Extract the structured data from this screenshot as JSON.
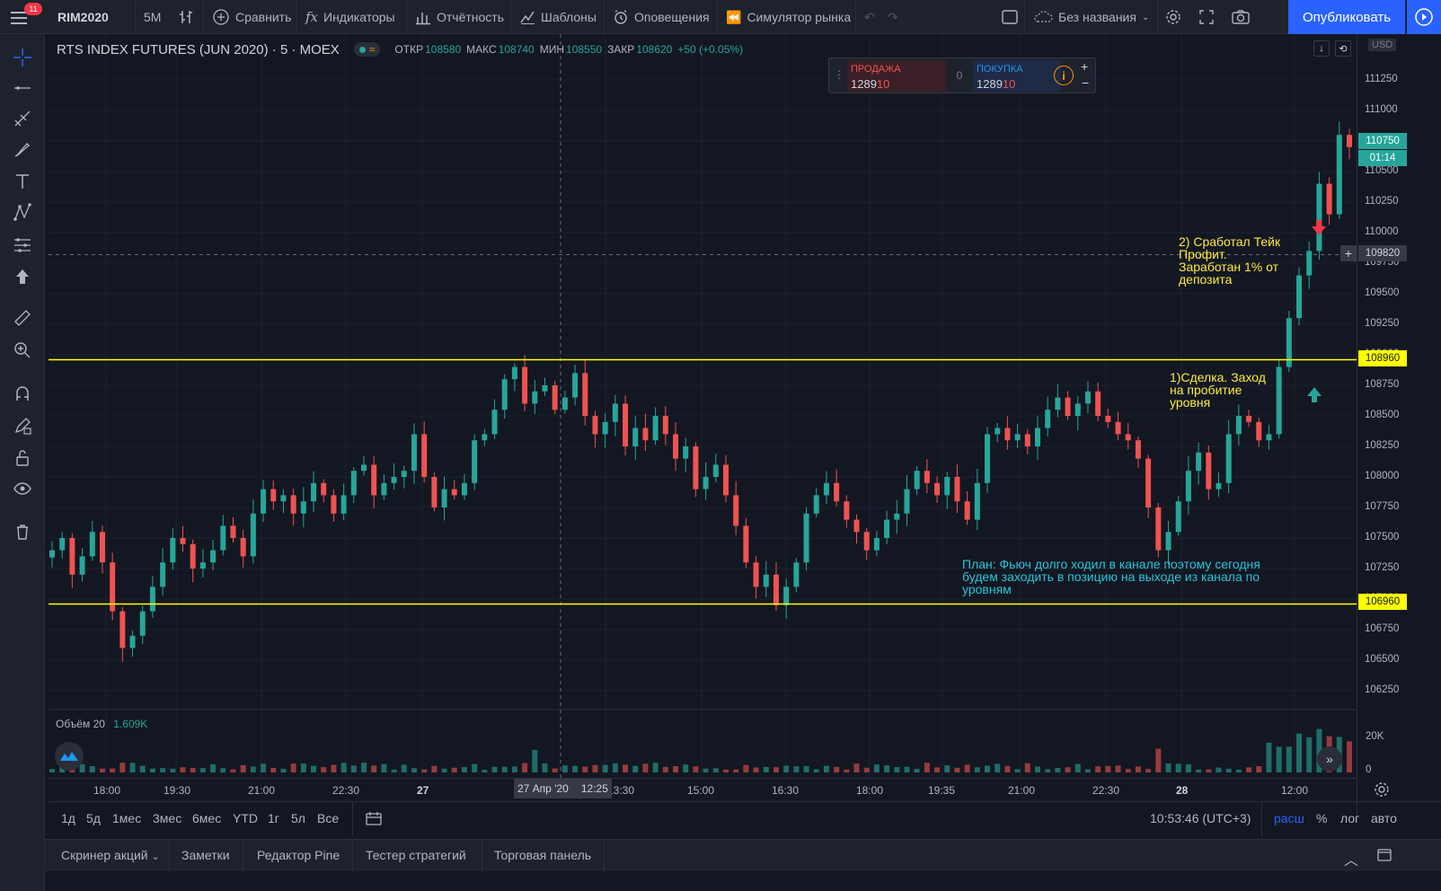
{
  "topbar": {
    "badge_count": "11",
    "symbol": "RIM2020",
    "interval": "5M",
    "compare": "Сравнить",
    "indicators": "Индикаторы",
    "reports": "Отчётность",
    "templates": "Шаблоны",
    "alerts": "Оповещения",
    "simulator": "Симулятор рынка",
    "layout_name": "Без названия",
    "publish": "Опубликовать"
  },
  "legend": {
    "symbol_title": "RTS INDEX FUTURES (JUN 2020)",
    "interval": "5",
    "exchange": "MOEX",
    "open_label": "ОТКР",
    "open": "108580",
    "high_label": "МАКС",
    "high": "108740",
    "low_label": "МИН",
    "low": "108550",
    "close_label": "ЗАКР",
    "close": "108620",
    "change": "+50 (+0.05%)"
  },
  "trade_widget": {
    "sell_label": "ПРОДАЖА",
    "sell_main": "1289",
    "sell_tail": "10",
    "spread": "0",
    "buy_label": "ПОКУПКА",
    "buy_main": "1289",
    "buy_tail": "10"
  },
  "price_scale": {
    "currency": "USD",
    "ticks": [
      "111250",
      "111000",
      "110750",
      "110500",
      "110250",
      "110000",
      "109750",
      "109500",
      "109250",
      "109000",
      "108750",
      "108500",
      "108250",
      "108000",
      "107750",
      "107500",
      "107250",
      "107000",
      "106750",
      "106500",
      "106250"
    ],
    "last_price": "110750",
    "countdown": "01:14",
    "crosshair_price": "109820",
    "level_upper": "108960",
    "level_lower": "106960"
  },
  "volume": {
    "label": "Объём",
    "length": "20",
    "value": "1.609K",
    "ticks": [
      "20K",
      "0"
    ]
  },
  "annotations": {
    "plan": "План: Фьюч долго ходил в канале поэтому сегодня\nбудем заходить в позицию на выходе из канала по\nуровням",
    "deal": "1)Сделка. Заход\nна пробитие\nуровня",
    "take_profit": "2) Сработал Тейк\nПрофит.\nЗаработан 1% от\nдепозита"
  },
  "time_axis": {
    "labels": [
      "18:00",
      "19:30",
      "21:00",
      "22:30",
      "27",
      "13:30",
      "15:00",
      "16:30",
      "18:00",
      "19:35",
      "21:00",
      "22:30",
      "28",
      "12:00"
    ],
    "crosshair_date": "27 Апр '20",
    "crosshair_time": "12:25"
  },
  "range_bar": {
    "ranges": [
      "1д",
      "5д",
      "1мес",
      "3мес",
      "6мес",
      "YTD",
      "1г",
      "5л",
      "Все"
    ],
    "clock": "10:53:46 (UTC+3)",
    "ext": "расш",
    "percent": "%",
    "log": "лог",
    "auto": "авто"
  },
  "bottom_tabs": [
    "Скринер акций",
    "Заметки",
    "Редактор Pine",
    "Тестер стратегий",
    "Торговая панель"
  ],
  "chart_data": {
    "type": "candlestick",
    "symbol": "RIM2020",
    "interval": "5M",
    "ylim": [
      106250,
      111250
    ],
    "levels": [
      108960,
      106960
    ],
    "colors": {
      "up": "#26a69a",
      "down": "#ef5350",
      "level": "#ffff00",
      "bg": "#131722"
    },
    "closes": [
      107400,
      107500,
      107200,
      107350,
      107550,
      107300,
      106900,
      106600,
      106700,
      106900,
      107100,
      107300,
      107500,
      107450,
      107250,
      107300,
      107400,
      107600,
      107500,
      107350,
      107700,
      107900,
      107800,
      107850,
      107700,
      107800,
      107950,
      107850,
      107700,
      107850,
      108050,
      108100,
      107850,
      107950,
      108000,
      108050,
      108350,
      108000,
      107750,
      107900,
      107850,
      107950,
      108300,
      108350,
      108550,
      108800,
      108900,
      108600,
      108700,
      108750,
      108550,
      108650,
      108850,
      108500,
      108350,
      108450,
      108600,
      108250,
      108400,
      108300,
      108500,
      108350,
      108150,
      108250,
      107900,
      108000,
      108100,
      107850,
      107600,
      107300,
      107100,
      107200,
      106950,
      107100,
      107300,
      107700,
      107850,
      107950,
      107800,
      107650,
      107550,
      107400,
      107500,
      107650,
      107700,
      107900,
      108050,
      107950,
      107850,
      108000,
      107800,
      107650,
      107950,
      108350,
      108400,
      108300,
      108350,
      108250,
      108400,
      108550,
      108650,
      108500,
      108600,
      108700,
      108500,
      108450,
      108350,
      108300,
      108150,
      107750,
      107400,
      107550,
      107800,
      108050,
      108200,
      107900,
      107950,
      108350,
      108500,
      108450,
      108300,
      108350,
      108900,
      109300,
      109650,
      109850,
      110400,
      110150,
      110800,
      110700
    ]
  }
}
